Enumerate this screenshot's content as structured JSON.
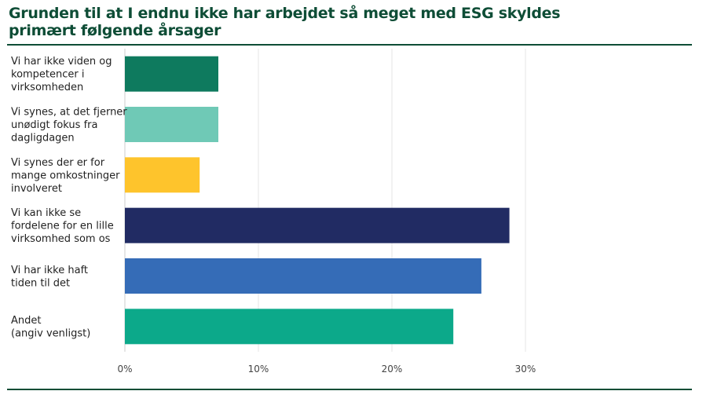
{
  "chart_data": {
    "type": "bar",
    "orientation": "horizontal",
    "title_lines": [
      "Grunden til at I endnu ikke har arbejdet så meget med ESG skyldes",
      "primært følgende årsager"
    ],
    "categories": [
      [
        "Vi har ikke viden og",
        "kompetencer i",
        "virksomheden"
      ],
      [
        "Vi synes, at det fjerner",
        "unødigt fokus fra",
        "dagligdagen"
      ],
      [
        "Vi synes der er for",
        "mange omkostninger",
        "involveret"
      ],
      [
        "Vi kan ikke se",
        "fordelene for en lille",
        "virksomhed som os"
      ],
      [
        "Vi har ikke haft",
        "tiden til det"
      ],
      [
        "Andet",
        "(angiv venligst)"
      ]
    ],
    "values": [
      7.0,
      7.0,
      5.6,
      28.8,
      26.7,
      24.6
    ],
    "colors": [
      "#0e7a5e",
      "#6fc9b6",
      "#fec42c",
      "#212b63",
      "#356cb7",
      "#0ca98a"
    ],
    "xlim": [
      0,
      30
    ],
    "ticks": [
      0,
      10,
      20,
      30
    ],
    "tick_labels": [
      "0%",
      "10%",
      "20%",
      "30%"
    ],
    "grid": true,
    "legend": "none"
  }
}
